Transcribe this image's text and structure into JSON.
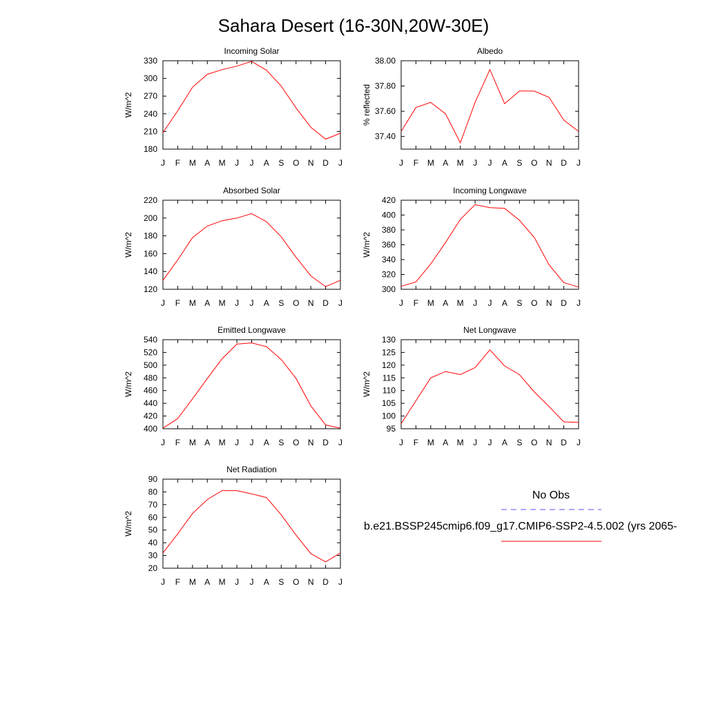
{
  "title": "Sahara Desert (16-30N,20W-30E)",
  "months": [
    "J",
    "F",
    "M",
    "A",
    "M",
    "J",
    "J",
    "A",
    "S",
    "O",
    "N",
    "D",
    "J"
  ],
  "colors": {
    "model_line": "#ff0000",
    "obs_line": "#5555ff"
  },
  "legend": {
    "obs_label": "No Obs",
    "model_label": "b.e21.BSSP245cmip6.f09_g17.CMIP6-SSP2-4.5.002 (yrs 2065-"
  },
  "chart_data": [
    {
      "type": "line",
      "title": "Incoming Solar",
      "ylabel": "W/m^2",
      "ylim": [
        180,
        330
      ],
      "yticks": [
        180,
        210,
        240,
        270,
        300,
        330
      ],
      "ytick_labels": [
        "180",
        "210",
        "240",
        "270",
        "300",
        "330"
      ],
      "series": [
        {
          "values": [
            208,
            245,
            285,
            307,
            315,
            321,
            329,
            314,
            287,
            250,
            217,
            197,
            207
          ]
        }
      ]
    },
    {
      "type": "line",
      "title": "Albedo",
      "ylabel": "% reflected",
      "ylim": [
        37.3,
        38.0
      ],
      "yticks": [
        37.4,
        37.6,
        37.8,
        38.0
      ],
      "ytick_labels": [
        "37.40",
        "37.60",
        "37.80",
        "38.00"
      ],
      "series": [
        {
          "values": [
            37.44,
            37.63,
            37.67,
            37.58,
            37.35,
            37.67,
            37.93,
            37.66,
            37.76,
            37.76,
            37.71,
            37.53,
            37.44
          ]
        }
      ]
    },
    {
      "type": "line",
      "title": "Absorbed Solar",
      "ylabel": "W/m^2",
      "ylim": [
        120,
        220
      ],
      "yticks": [
        120,
        140,
        160,
        180,
        200,
        220
      ],
      "ytick_labels": [
        "120",
        "140",
        "160",
        "180",
        "200",
        "220"
      ],
      "series": [
        {
          "values": [
            130,
            153,
            178,
            191,
            197,
            200,
            205,
            196,
            179,
            156,
            135,
            123,
            130
          ]
        }
      ]
    },
    {
      "type": "line",
      "title": "Incoming Longwave",
      "ylabel": "W/m^2",
      "ylim": [
        300,
        420
      ],
      "yticks": [
        300,
        320,
        340,
        360,
        380,
        400,
        420
      ],
      "ytick_labels": [
        "300",
        "320",
        "340",
        "360",
        "380",
        "400",
        "420"
      ],
      "series": [
        {
          "values": [
            304,
            310,
            334,
            363,
            394,
            414,
            410,
            409,
            393,
            370,
            333,
            309,
            303
          ]
        }
      ]
    },
    {
      "type": "line",
      "title": "Emitted Longwave",
      "ylabel": "W/m^2",
      "ylim": [
        400,
        540
      ],
      "yticks": [
        400,
        420,
        440,
        460,
        480,
        500,
        520,
        540
      ],
      "ytick_labels": [
        "400",
        "420",
        "440",
        "460",
        "480",
        "500",
        "520",
        "540"
      ],
      "series": [
        {
          "values": [
            401,
            416,
            447,
            479,
            510,
            533,
            535,
            529,
            509,
            479,
            436,
            406,
            401
          ]
        }
      ]
    },
    {
      "type": "line",
      "title": "Net Longwave",
      "ylabel": "W/m^2",
      "ylim": [
        95,
        130
      ],
      "yticks": [
        95,
        100,
        105,
        110,
        115,
        120,
        125,
        130
      ],
      "ytick_labels": [
        "95",
        "100",
        "105",
        "110",
        "115",
        "120",
        "125",
        "130"
      ],
      "series": [
        {
          "values": [
            97,
            106,
            115,
            117.5,
            116.3,
            119,
            126,
            119.7,
            116.3,
            109.5,
            103.7,
            97.7,
            97.5
          ]
        }
      ]
    },
    {
      "type": "line",
      "title": "Net Radiation",
      "ylabel": "W/m^2",
      "ylim": [
        20,
        90
      ],
      "yticks": [
        20,
        30,
        40,
        50,
        60,
        70,
        80,
        90
      ],
      "ytick_labels": [
        "20",
        "30",
        "40",
        "50",
        "60",
        "70",
        "80",
        "90"
      ],
      "series": [
        {
          "values": [
            32,
            47,
            63,
            74,
            81,
            81,
            78.5,
            75.5,
            62,
            46,
            31.5,
            25,
            32
          ]
        }
      ]
    }
  ]
}
